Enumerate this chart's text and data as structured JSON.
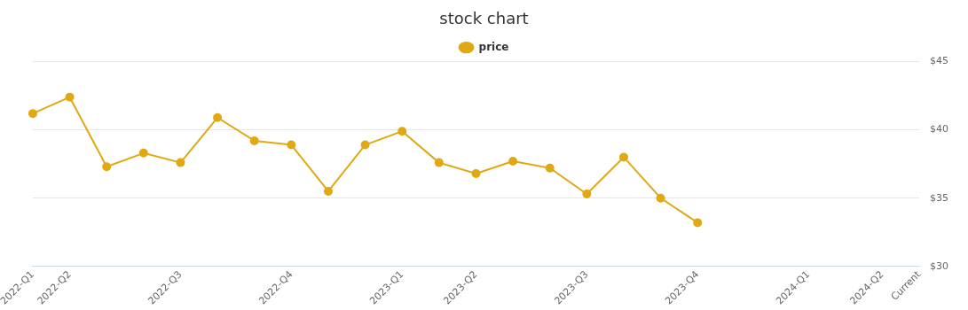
{
  "chart_data": {
    "type": "line",
    "title": "stock chart",
    "categories": [
      "2022-Q1",
      "2022-Q2",
      null,
      null,
      "2022-Q3",
      null,
      null,
      "2022-Q4",
      null,
      null,
      "2023-Q1",
      null,
      "2023-Q2",
      null,
      null,
      "2023-Q3",
      null,
      null,
      "2023-Q4",
      null,
      null,
      "2024-Q1",
      null,
      "2024-Q2",
      "Current"
    ],
    "series": [
      {
        "name": "price",
        "color": "#e0a912",
        "values": [
          41.2,
          42.4,
          37.3,
          38.3,
          37.6,
          40.9,
          39.2,
          38.9,
          35.5,
          38.9,
          39.9,
          37.6,
          36.8,
          37.7,
          37.2,
          35.3,
          38.0,
          35.0,
          33.2,
          null,
          null,
          null,
          null,
          null,
          null
        ]
      }
    ],
    "ylim": [
      30,
      45
    ],
    "yticks": [
      {
        "value": 30,
        "label": "$30"
      },
      {
        "value": 35,
        "label": "$35"
      },
      {
        "value": 40,
        "label": "$40"
      },
      {
        "value": 45,
        "label": "$45"
      }
    ],
    "grid": "y",
    "legend": "top",
    "marker": "circle",
    "line_style": "solid"
  }
}
